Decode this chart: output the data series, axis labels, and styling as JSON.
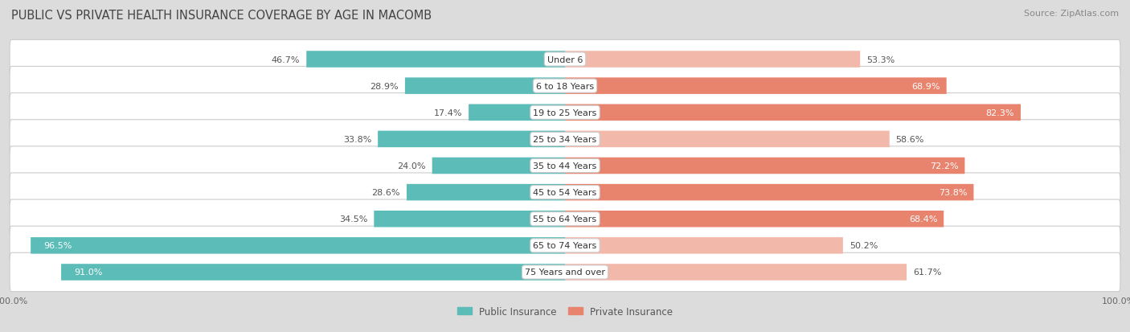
{
  "title": "PUBLIC VS PRIVATE HEALTH INSURANCE COVERAGE BY AGE IN MACOMB",
  "source": "Source: ZipAtlas.com",
  "categories": [
    "Under 6",
    "6 to 18 Years",
    "19 to 25 Years",
    "25 to 34 Years",
    "35 to 44 Years",
    "45 to 54 Years",
    "55 to 64 Years",
    "65 to 74 Years",
    "75 Years and over"
  ],
  "public_values": [
    46.7,
    28.9,
    17.4,
    33.8,
    24.0,
    28.6,
    34.5,
    96.5,
    91.0
  ],
  "private_values": [
    53.3,
    68.9,
    82.3,
    58.6,
    72.2,
    73.8,
    68.4,
    50.2,
    61.7
  ],
  "public_color": "#5bbcb8",
  "private_color": "#e8836e",
  "public_color_light": "#a8d8d6",
  "private_color_light": "#f2b8aa",
  "public_label": "Public Insurance",
  "private_label": "Private Insurance",
  "bg_color": "#dcdcdc",
  "row_bg_color": "#f5f5f5",
  "title_fontsize": 10.5,
  "source_fontsize": 8,
  "bar_label_fontsize": 8,
  "category_fontsize": 8,
  "axis_label_fontsize": 8,
  "legend_fontsize": 8.5,
  "max_val": 100,
  "xlim": 105
}
